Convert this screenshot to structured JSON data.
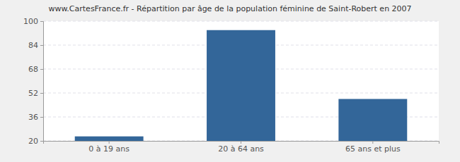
{
  "chart_data": {
    "type": "bar",
    "title": "www.CartesFrance.fr - Répartition par âge de la population féminine de Saint-Robert en 2007",
    "categories": [
      "0 à 19 ans",
      "20 à 64 ans",
      "65 ans et plus"
    ],
    "values": [
      23,
      94,
      48
    ],
    "color": "#336699",
    "ylim": [
      20,
      100
    ],
    "yticks": [
      20,
      36,
      52,
      68,
      84,
      100
    ],
    "grid": true
  }
}
